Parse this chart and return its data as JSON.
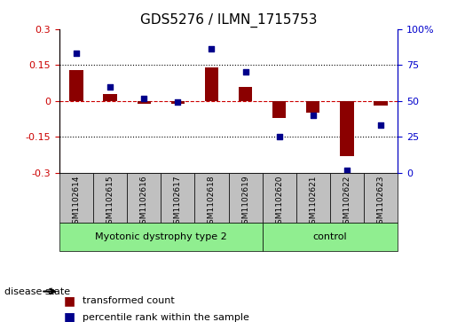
{
  "title": "GDS5276 / ILMN_1715753",
  "samples": [
    "GSM1102614",
    "GSM1102615",
    "GSM1102616",
    "GSM1102617",
    "GSM1102618",
    "GSM1102619",
    "GSM1102620",
    "GSM1102621",
    "GSM1102622",
    "GSM1102623"
  ],
  "transformed_count": [
    0.13,
    0.03,
    -0.01,
    -0.01,
    0.14,
    0.06,
    -0.07,
    -0.05,
    -0.23,
    -0.02
  ],
  "percentile_rank": [
    83,
    60,
    52,
    49,
    86,
    70,
    25,
    40,
    2,
    33
  ],
  "groups": [
    {
      "label": "Myotonic dystrophy type 2",
      "start": 0,
      "end": 6,
      "color": "#90EE90"
    },
    {
      "label": "control",
      "start": 6,
      "end": 10,
      "color": "#90EE90"
    }
  ],
  "group_indices": [
    0,
    1,
    2,
    3,
    4,
    5,
    6,
    7,
    8,
    9
  ],
  "left_ylim": [
    -0.3,
    0.3
  ],
  "right_ylim": [
    0,
    100
  ],
  "left_yticks": [
    -0.3,
    -0.15,
    0.0,
    0.15,
    0.3
  ],
  "right_yticks": [
    0,
    25,
    50,
    75,
    100
  ],
  "left_yticklabels": [
    "-0.3",
    "-0.15",
    "0",
    "0.15",
    "0.3"
  ],
  "right_yticklabels": [
    "0",
    "25",
    "50",
    "75",
    "100%"
  ],
  "bar_color": "#8B0000",
  "dot_color": "#00008B",
  "bar_width": 0.4,
  "hline_color": "#CC0000",
  "grid_color": "#000000",
  "disease_state_label": "disease state",
  "legend_bar_label": "transformed count",
  "legend_dot_label": "percentile rank within the sample",
  "tick_label_color_left": "#CC0000",
  "tick_label_color_right": "#0000CC",
  "xlabel_bg_color": "#C0C0C0",
  "group_label_bg": "#90EE90"
}
